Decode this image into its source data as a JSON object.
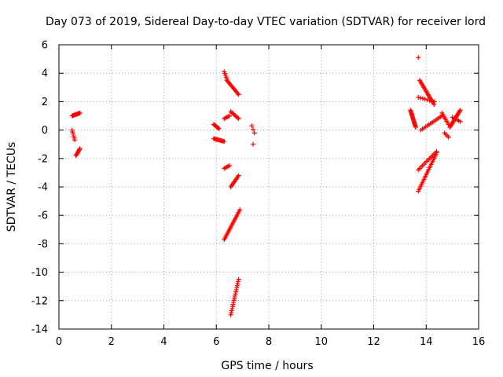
{
  "chart_data": {
    "type": "scatter",
    "title": "Day 073 of 2019, Sidereal Day-to-day VTEC variation (SDTVAR) for receiver lord",
    "xlabel": "GPS time / hours",
    "ylabel": "SDTVAR / TECUs",
    "xlim": [
      0,
      16
    ],
    "ylim": [
      -14,
      6
    ],
    "xticks": [
      0,
      2,
      4,
      6,
      8,
      10,
      12,
      14,
      16
    ],
    "yticks": [
      -14,
      -12,
      -10,
      -8,
      -6,
      -4,
      -2,
      0,
      2,
      4,
      6
    ],
    "grid": true,
    "marker": "+",
    "marker_color": "#ff0000",
    "segments": [
      {
        "x0": 0.5,
        "x1": 0.8,
        "y0": 1.0,
        "y1": 1.2,
        "n": 12
      },
      {
        "x0": 0.5,
        "x1": 0.6,
        "y0": 0.0,
        "y1": -0.7,
        "n": 6
      },
      {
        "x0": 0.65,
        "x1": 0.8,
        "y0": -1.8,
        "y1": -1.3,
        "n": 8
      },
      {
        "x0": 5.9,
        "x1": 6.1,
        "y0": 0.4,
        "y1": 0.1,
        "n": 8
      },
      {
        "x0": 5.9,
        "x1": 6.3,
        "y0": -0.6,
        "y1": -0.8,
        "n": 12
      },
      {
        "x0": 6.3,
        "x1": 6.4,
        "y0": 4.1,
        "y1": 3.6,
        "n": 5
      },
      {
        "x0": 6.4,
        "x1": 6.85,
        "y0": 3.5,
        "y1": 2.5,
        "n": 14
      },
      {
        "x0": 6.3,
        "x1": 6.5,
        "y0": 0.8,
        "y1": 1.0,
        "n": 5
      },
      {
        "x0": 6.55,
        "x1": 6.85,
        "y0": 1.3,
        "y1": 0.8,
        "n": 8
      },
      {
        "x0": 6.3,
        "x1": 6.5,
        "y0": -2.7,
        "y1": -2.5,
        "n": 5
      },
      {
        "x0": 6.55,
        "x1": 6.85,
        "y0": -4.0,
        "y1": -3.2,
        "n": 10
      },
      {
        "x0": 6.3,
        "x1": 6.9,
        "y0": -7.7,
        "y1": -5.6,
        "n": 20
      },
      {
        "x0": 6.55,
        "x1": 6.85,
        "y0": -13.0,
        "y1": -10.5,
        "n": 18
      },
      {
        "x0": 7.35,
        "x1": 7.45,
        "y0": 0.3,
        "y1": -0.2,
        "n": 3
      },
      {
        "x0": 7.4,
        "x1": 7.4,
        "y0": -1.0,
        "y1": -1.0,
        "n": 1
      },
      {
        "x0": 13.4,
        "x1": 13.6,
        "y0": 1.4,
        "y1": 0.2,
        "n": 18
      },
      {
        "x0": 13.7,
        "x1": 13.7,
        "y0": 5.1,
        "y1": 5.1,
        "n": 1
      },
      {
        "x0": 13.75,
        "x1": 14.3,
        "y0": 3.5,
        "y1": 1.8,
        "n": 18
      },
      {
        "x0": 13.7,
        "x1": 14.3,
        "y0": 2.3,
        "y1": 2.0,
        "n": 8
      },
      {
        "x0": 13.8,
        "x1": 14.6,
        "y0": 0.0,
        "y1": 1.0,
        "n": 14
      },
      {
        "x0": 13.7,
        "x1": 14.4,
        "y0": -2.8,
        "y1": -1.5,
        "n": 14
      },
      {
        "x0": 13.7,
        "x1": 14.4,
        "y0": -4.3,
        "y1": -1.6,
        "n": 24
      },
      {
        "x0": 14.6,
        "x1": 14.85,
        "y0": 1.2,
        "y1": 0.4,
        "n": 8
      },
      {
        "x0": 14.7,
        "x1": 14.85,
        "y0": -0.2,
        "y1": -0.5,
        "n": 4
      },
      {
        "x0": 14.9,
        "x1": 15.3,
        "y0": 0.2,
        "y1": 1.4,
        "n": 18
      },
      {
        "x0": 15.0,
        "x1": 15.3,
        "y0": 0.9,
        "y1": 0.6,
        "n": 6
      }
    ]
  }
}
